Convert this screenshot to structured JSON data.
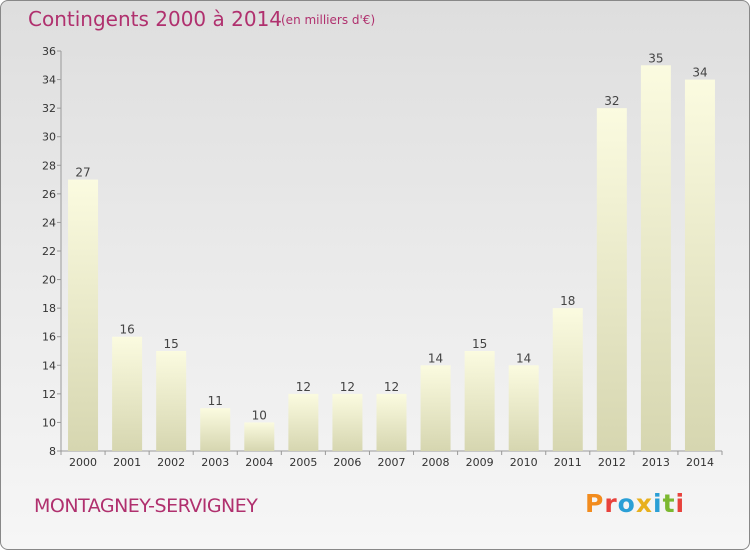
{
  "header": {
    "title": "Contingents 2000 à 2014",
    "subtitle": "(en milliers d'€)"
  },
  "footer": {
    "place": "MONTAGNEY-SERVIGNEY",
    "brand": "Proxiti"
  },
  "colors": {
    "title": "#b0306e",
    "bar_top": "#fbfbe0",
    "bar_bottom": "#d6d6b0",
    "axis": "#999999"
  },
  "chart_data": {
    "type": "bar",
    "title": "Contingents 2000 à 2014",
    "subtitle": "(en milliers d'€)",
    "categories": [
      "2000",
      "2001",
      "2002",
      "2003",
      "2004",
      "2005",
      "2006",
      "2007",
      "2008",
      "2009",
      "2010",
      "2011",
      "2012",
      "2013",
      "2014"
    ],
    "values": [
      27,
      16,
      15,
      11,
      10,
      12,
      12,
      12,
      14,
      15,
      14,
      18,
      32,
      35,
      34
    ],
    "ylim": [
      8,
      36
    ],
    "yticks": [
      8,
      10,
      12,
      14,
      16,
      18,
      20,
      22,
      24,
      26,
      28,
      30,
      32,
      34,
      36
    ],
    "grid": false,
    "data_labels": true
  }
}
